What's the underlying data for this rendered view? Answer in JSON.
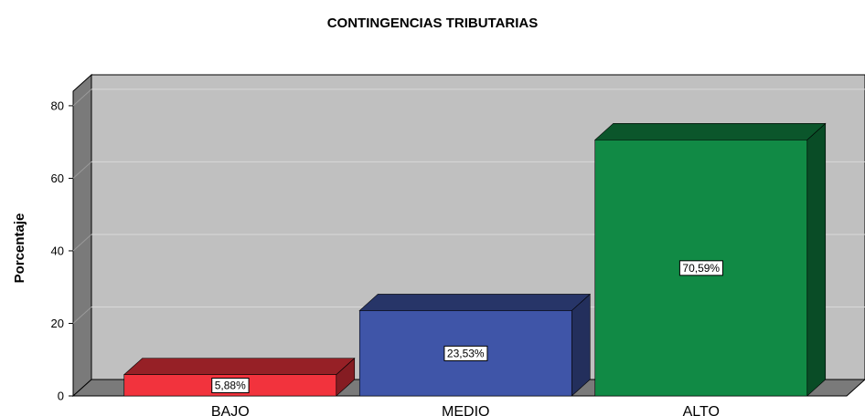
{
  "chart_data": {
    "type": "bar3d",
    "title": "CONTINGENCIAS TRIBUTARIAS",
    "y_label": "Porcentaje",
    "categories": [
      "BAJO",
      "MEDIO",
      "ALTO"
    ],
    "values": [
      5.88,
      23.53,
      70.59
    ],
    "value_labels": [
      "5,88%",
      "23,53%",
      "70,59%"
    ],
    "colors": [
      "#f2333d",
      "#3f55a8",
      "#118a45"
    ],
    "ylim": [
      0,
      84
    ],
    "yticks": [
      0,
      20,
      40,
      60,
      80
    ],
    "grid": true
  }
}
